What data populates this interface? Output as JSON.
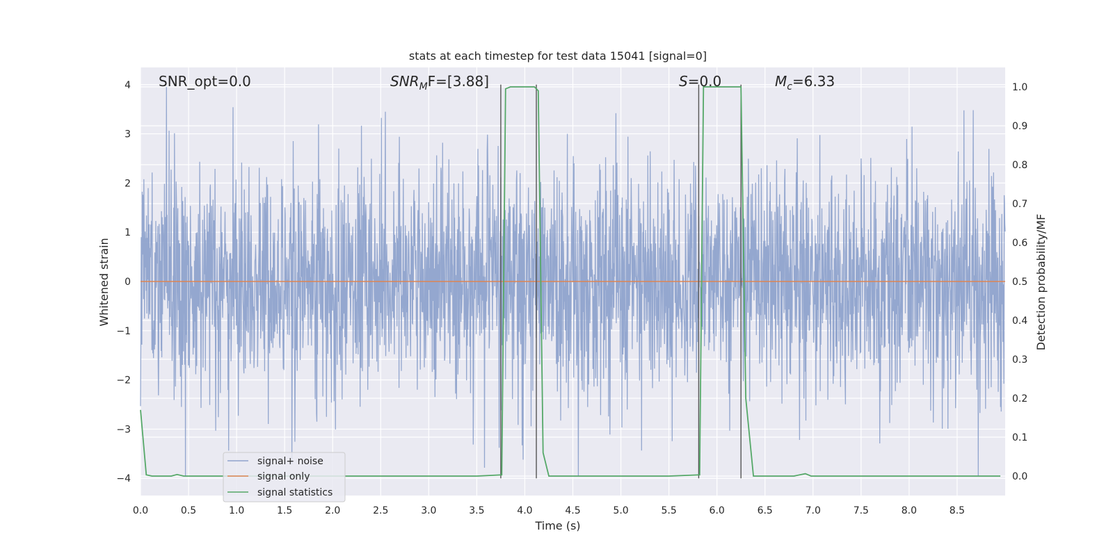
{
  "chart_data": {
    "type": "line",
    "title": "stats at each timestep for test data 15041 [signal=0]",
    "xlabel": "Time (s)",
    "ylabel": "Whitened strain",
    "y2label": "Detection probability/MF",
    "xlim": [
      0,
      9.0
    ],
    "ylim": [
      -4.35,
      4.35
    ],
    "y2lim": [
      -0.05,
      1.05
    ],
    "xticks": [
      "0.0",
      "0.5",
      "1.0",
      "1.5",
      "2.0",
      "2.5",
      "3.0",
      "3.5",
      "4.0",
      "4.5",
      "5.0",
      "5.5",
      "6.0",
      "6.5",
      "7.0",
      "7.5",
      "8.0",
      "8.5"
    ],
    "yticks": [
      "4",
      "3",
      "2",
      "1",
      "0",
      "−1",
      "−2",
      "−3",
      "−4"
    ],
    "y2ticks": [
      "1.0",
      "0.9",
      "0.8",
      "0.7",
      "0.6",
      "0.5",
      "0.4",
      "0.3",
      "0.2",
      "0.1",
      "0.0"
    ],
    "grid": true,
    "legend_position": "lower-left",
    "annotations": {
      "snr_opt": "SNR_opt=0.0",
      "snr_mf_main": "SNR",
      "snr_mf_sub": "M",
      "snr_mf_rest": "F=[3.88]",
      "s_italic": "S",
      "s_rest": "=0.0",
      "mc_italic": "M",
      "mc_sub": "c",
      "mc_rest": "=6.33"
    },
    "series": [
      {
        "name": "signal+ noise",
        "color": "#8fa3cc",
        "description": "dense noise",
        "amplitude_std": 1.0
      },
      {
        "name": "signal only",
        "color": "#dd8452",
        "x": [
          0,
          9.0
        ],
        "y": [
          0,
          0
        ]
      },
      {
        "name": "signal statistics",
        "color": "#55a868",
        "axis": "right",
        "x": [
          0.0,
          0.06,
          0.12,
          0.2,
          0.32,
          0.38,
          0.45,
          1.0,
          2.0,
          3.0,
          3.5,
          3.76,
          3.8,
          3.85,
          4.1,
          4.14,
          4.19,
          4.25,
          4.3,
          5.0,
          5.5,
          5.82,
          5.86,
          5.9,
          6.0,
          6.25,
          6.3,
          6.38,
          6.45,
          6.8,
          6.92,
          6.98,
          7.5,
          8.0,
          8.5,
          8.95
        ],
        "y": [
          0.17,
          0.003,
          0.0,
          0.0,
          0.0,
          0.004,
          0.0,
          0.0,
          0.0,
          0.0,
          0.0,
          0.003,
          0.995,
          1.0,
          1.0,
          0.99,
          0.06,
          0.0,
          0.0,
          0.0,
          0.0,
          0.003,
          1.0,
          1.0,
          1.0,
          1.0,
          0.2,
          0.0,
          0.0,
          0.0,
          0.006,
          0.0,
          0.0,
          0.0,
          0.0,
          0.0
        ]
      }
    ],
    "vertical_lines": [
      3.75,
      4.12,
      5.81,
      6.25
    ]
  }
}
